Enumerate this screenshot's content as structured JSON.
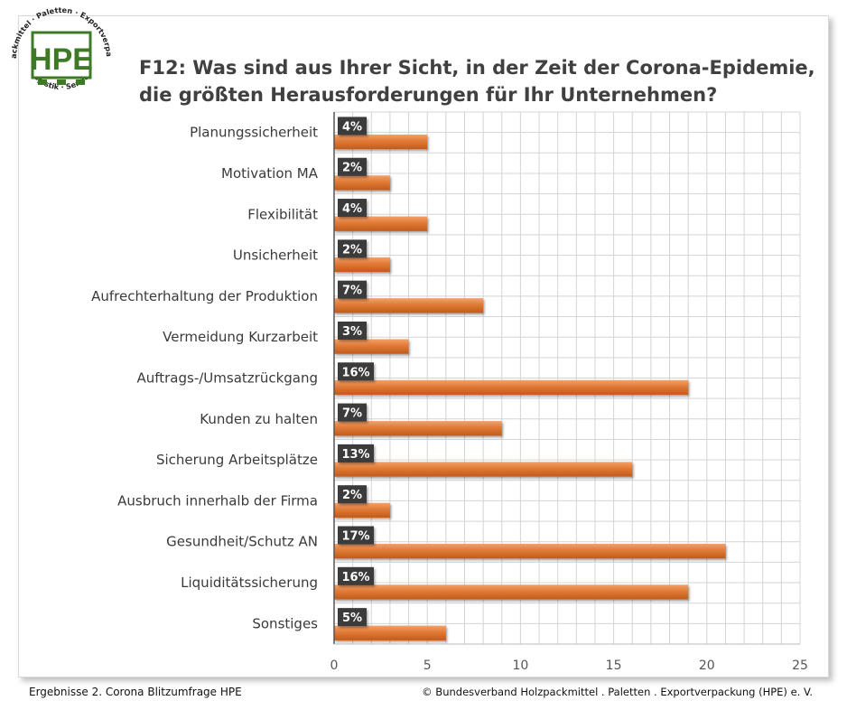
{
  "logo": {
    "letters": "HPE",
    "ring_top": "Holzpackmittel · Paletten · Exportverpackung",
    "ring_bottom": "Logistik · Service",
    "color": "#3e7a25"
  },
  "footer": {
    "left": "Ergebnisse 2. Corona Blitzumfrage HPE",
    "right": "© Bundesverband Holzpackmittel . Paletten . Exportverpackung (HPE) e. V."
  },
  "colors": {
    "bar": "#e07a35",
    "bar_dark": "#c15a1c",
    "label_bg": "#3a3a3a",
    "label_text": "#ffffff",
    "grid": "#d4d4d4",
    "axis": "#555555"
  },
  "chart_data": {
    "type": "bar",
    "orientation": "horizontal",
    "title_line1": "F12: Was sind aus Ihrer Sicht, in der Zeit der Corona-Epidemie,",
    "title_line2": "die größten Herausforderungen für Ihr Unternehmen?",
    "categories": [
      "Planungssicherheit",
      "Motivation MA",
      "Flexibilität",
      "Unsicherheit",
      "Aufrechterhaltung der Produktion",
      "Vermeidung Kurzarbeit",
      "Auftrags-/Umsatzrückgang",
      "Kunden zu halten",
      "Sicherung Arbeitsplätze",
      "Ausbruch innerhalb der Firma",
      "Gesundheit/Schutz AN",
      "Liquiditätssicherung",
      "Sonstiges"
    ],
    "values": [
      5,
      3,
      5,
      3,
      8,
      4,
      19,
      9,
      16,
      3,
      21,
      19,
      6
    ],
    "data_labels": [
      "4%",
      "2%",
      "4%",
      "2%",
      "7%",
      "3%",
      "16%",
      "7%",
      "13%",
      "2%",
      "17%",
      "16%",
      "5%"
    ],
    "xlim": [
      0,
      25
    ],
    "xticks": [
      "0",
      "5",
      "10",
      "15",
      "20",
      "25"
    ],
    "grid": true
  }
}
